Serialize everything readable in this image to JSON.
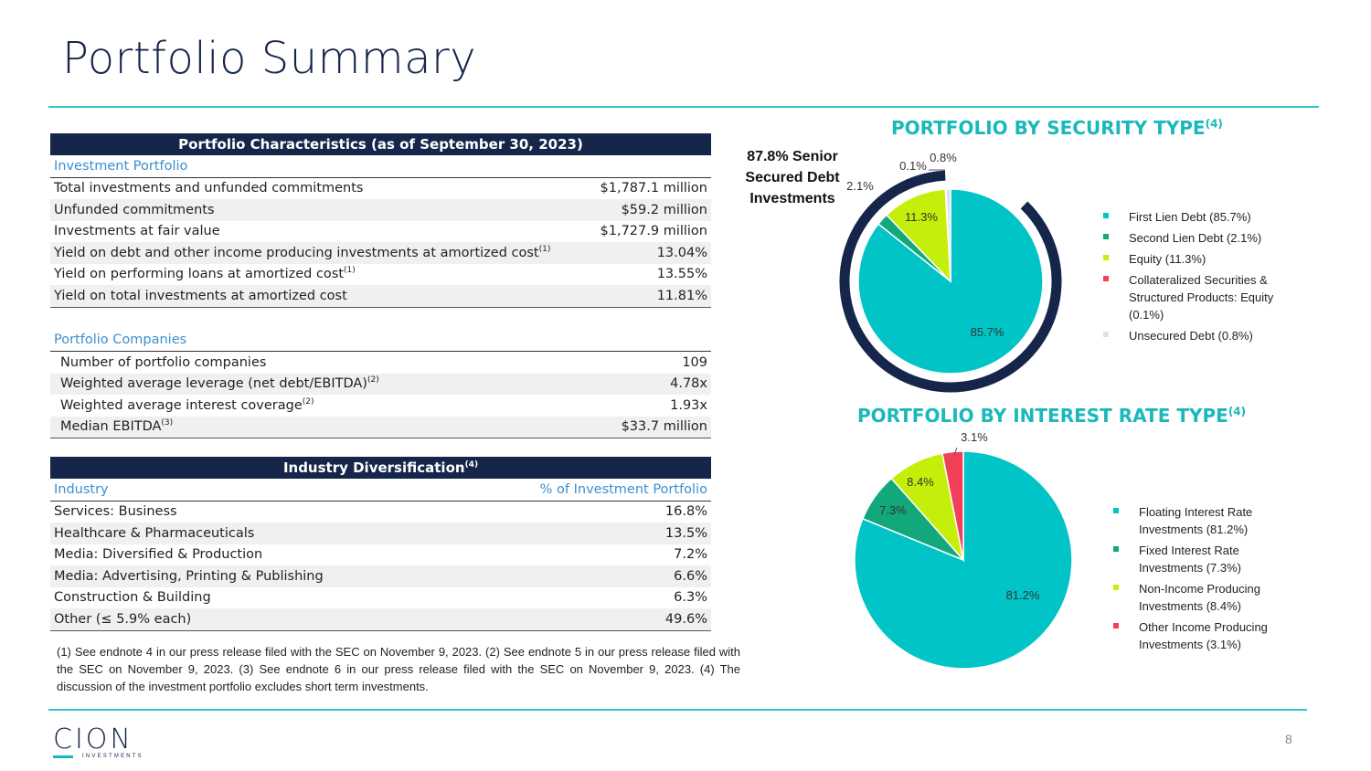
{
  "page": {
    "title": "Portfolio Summary",
    "page_number": "8"
  },
  "portfolio_characteristics": {
    "header": "Portfolio Characteristics (as of September 30, 2023)",
    "investment_portfolio_label": "Investment Portfolio",
    "rows": [
      {
        "label": "Total investments and unfunded commitments",
        "sup": "",
        "value": "$1,787.1 million"
      },
      {
        "label": "Unfunded commitments",
        "sup": "",
        "value": "$59.2 million"
      },
      {
        "label": "Investments at fair value",
        "sup": "",
        "value": "$1,727.9 million"
      },
      {
        "label": "Yield on debt and other income producing investments at amortized cost",
        "sup": "(1)",
        "value": "13.04%"
      },
      {
        "label": "Yield on performing loans at amortized cost",
        "sup": "(1)",
        "value": "13.55%"
      },
      {
        "label": "Yield on total investments at amortized cost",
        "sup": "",
        "value": "11.81%"
      }
    ],
    "portfolio_companies_label": "Portfolio Companies",
    "company_rows": [
      {
        "label": "Number of portfolio companies",
        "sup": "",
        "value": "109"
      },
      {
        "label": "Weighted average leverage (net debt/EBITDA)",
        "sup": "(2)",
        "value": "4.78x"
      },
      {
        "label": "Weighted average interest coverage",
        "sup": "(2)",
        "value": "1.93x"
      },
      {
        "label": "Median EBITDA",
        "sup": "(3)",
        "value": "$33.7 million"
      }
    ]
  },
  "industry": {
    "header": "Industry Diversification",
    "header_sup": "(4)",
    "col_industry": "Industry",
    "col_pct": "% of Investment Portfolio",
    "rows": [
      {
        "label": "Services: Business",
        "value": "16.8%"
      },
      {
        "label": "Healthcare & Pharmaceuticals",
        "value": "13.5%"
      },
      {
        "label": "Media: Diversified & Production",
        "value": "7.2%"
      },
      {
        "label": "Media: Advertising, Printing & Publishing",
        "value": "6.6%"
      },
      {
        "label": "Construction & Building",
        "value": "6.3%"
      },
      {
        "label": "Other (≤ 5.9% each)",
        "value": "49.6%"
      }
    ]
  },
  "footnote": "(1) See endnote 4 in our press release filed with the SEC on November 9, 2023. (2) See endnote 5 in our press release filed with the SEC on November 9, 2023. (3) See endnote 6 in our press release filed with the SEC on November 9, 2023. (4) The discussion of the investment portfolio excludes short term investments.",
  "senior_label": "87.8% Senior Secured Debt Investments",
  "logo": {
    "word": "CION",
    "sub": "INVESTMENTS"
  },
  "colors": {
    "navy": "#15264a",
    "teal": "#00c4c6",
    "green": "#12a87c",
    "lime": "#c3ef0b",
    "red": "#f2405a",
    "light": "#dbe2ef"
  },
  "chart_data": [
    {
      "type": "pie",
      "title": "PORTFOLIO BY SECURITY TYPE",
      "title_sup": "(4)",
      "slices": [
        {
          "name": "First Lien Debt (85.7%)",
          "label": "85.7%",
          "value": 85.7,
          "color": "#00c4c6"
        },
        {
          "name": "Second Lien Debt (2.1%)",
          "label": "2.1%",
          "value": 2.1,
          "color": "#12a87c"
        },
        {
          "name": "Equity (11.3%)",
          "label": "11.3%",
          "value": 11.3,
          "color": "#c3ef0b"
        },
        {
          "name": "Collateralized Securities & Structured Products: Equity (0.1%)",
          "label": "0.1%",
          "value": 0.1,
          "color": "#f2405a"
        },
        {
          "name": "Unsecured Debt (0.8%)",
          "label": "0.8%",
          "value": 0.8,
          "color": "#dbe2ef"
        }
      ],
      "ring_value": 87.8,
      "ring_color": "#15264a",
      "legend_position": "right"
    },
    {
      "type": "pie",
      "title": "PORTFOLIO BY INTEREST RATE TYPE",
      "title_sup": "(4)",
      "slices": [
        {
          "name": "Floating Interest Rate Investments (81.2%)",
          "label": "81.2%",
          "value": 81.2,
          "color": "#00c4c6"
        },
        {
          "name": "Fixed Interest Rate Investments (7.3%)",
          "label": "7.3%",
          "value": 7.3,
          "color": "#12a87c"
        },
        {
          "name": "Non-Income Producing Investments (8.4%)",
          "label": "8.4%",
          "value": 8.4,
          "color": "#c3ef0b"
        },
        {
          "name": "Other Income Producing Investments (3.1%)",
          "label": "3.1%",
          "value": 3.1,
          "color": "#f2405a"
        }
      ],
      "legend_position": "right"
    }
  ]
}
